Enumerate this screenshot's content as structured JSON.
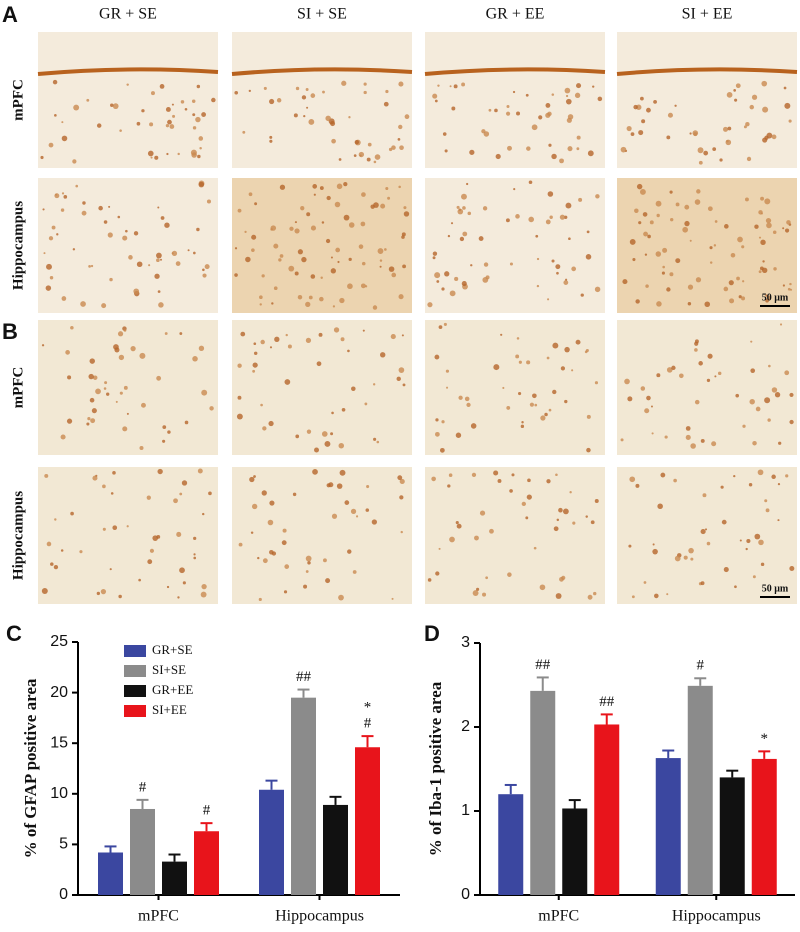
{
  "panels": {
    "a": "A",
    "b": "B",
    "c": "C",
    "d": "D"
  },
  "columns": [
    "GR + SE",
    "SI + SE",
    "GR + EE",
    "SI + EE"
  ],
  "rows": {
    "a": [
      "mPFC",
      "Hippocampus"
    ],
    "b": [
      "mPFC",
      "Hippocampus"
    ]
  },
  "scale_bar": "50 μm",
  "chart_data": [
    {
      "type": "bar",
      "ylabel": "% of GFAP positive area",
      "categories": [
        "mPFC",
        "Hippocampus"
      ],
      "ylim": [
        0,
        25
      ],
      "yticks": [
        0,
        5,
        10,
        15,
        20,
        25
      ],
      "legend": "upper left",
      "series": [
        {
          "name": "GR+SE",
          "color": "#3b47a0",
          "values": [
            4.2,
            10.4
          ],
          "errors": [
            0.6,
            0.9
          ]
        },
        {
          "name": "SI+SE",
          "color": "#8b8b8b",
          "values": [
            8.5,
            19.5
          ],
          "errors": [
            0.9,
            0.8
          ],
          "annotations": [
            [
              "#"
            ],
            [
              "##"
            ]
          ]
        },
        {
          "name": "GR+EE",
          "color": "#111111",
          "values": [
            3.3,
            8.9
          ],
          "errors": [
            0.7,
            0.8
          ]
        },
        {
          "name": "SI+EE",
          "color": "#e8141b",
          "values": [
            6.3,
            14.6
          ],
          "errors": [
            0.8,
            1.1
          ],
          "annotations": [
            [
              "#"
            ],
            [
              "*",
              "#"
            ]
          ]
        }
      ]
    },
    {
      "type": "bar",
      "ylabel": "% of Iba-1 positive area",
      "categories": [
        "mPFC",
        "Hippocampus"
      ],
      "ylim": [
        0,
        3
      ],
      "yticks": [
        0,
        1,
        2,
        3
      ],
      "series": [
        {
          "color": "#3b47a0",
          "values": [
            1.2,
            1.63
          ],
          "errors": [
            0.11,
            0.09
          ]
        },
        {
          "color": "#8b8b8b",
          "values": [
            2.43,
            2.49
          ],
          "errors": [
            0.16,
            0.09
          ],
          "annotations": [
            [
              "##"
            ],
            [
              "#"
            ]
          ]
        },
        {
          "color": "#111111",
          "values": [
            1.03,
            1.4
          ],
          "errors": [
            0.1,
            0.08
          ]
        },
        {
          "color": "#e8141b",
          "values": [
            2.03,
            1.62
          ],
          "errors": [
            0.12,
            0.09
          ],
          "annotations": [
            [
              "##"
            ],
            [
              "*"
            ]
          ]
        }
      ]
    }
  ]
}
